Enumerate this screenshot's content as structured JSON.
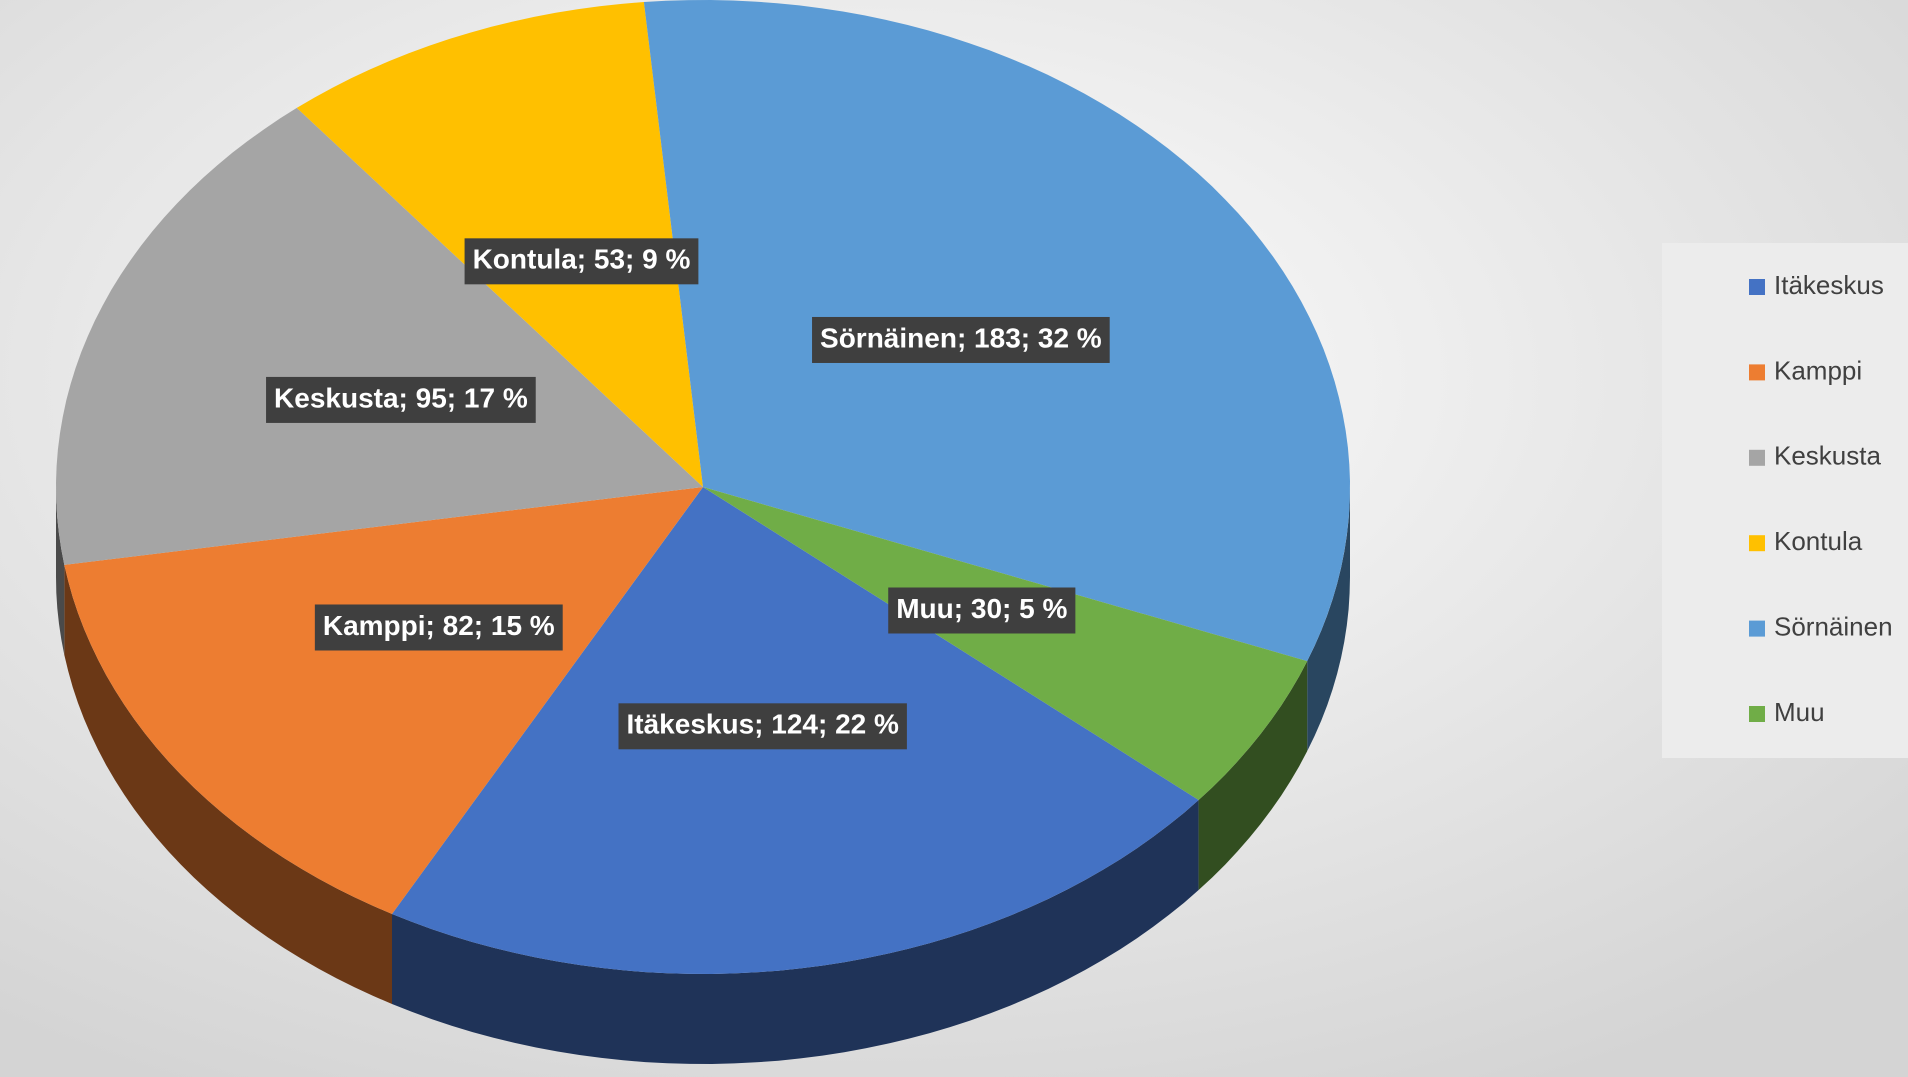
{
  "chart_data": {
    "type": "pie",
    "categories": [
      "Itäkeskus",
      "Kamppi",
      "Keskusta",
      "Kontula",
      "Sörnäinen",
      "Muu"
    ],
    "values": [
      124,
      82,
      95,
      53,
      183,
      30
    ],
    "value_labels": [
      "Itäkeskus; 124; 22 %",
      "Kamppi; 82; 15 %",
      "Keskusta; 95; 17 %",
      "Kontula; 53; 9 %",
      "Sörnäinen; 183; 32 %",
      "Muu; 30; 5 %"
    ],
    "colors": [
      "#4472c4",
      "#ed7d31",
      "#a5a5a5",
      "#ffc000",
      "#5b9bd5",
      "#70ad47"
    ],
    "legend": "right"
  }
}
